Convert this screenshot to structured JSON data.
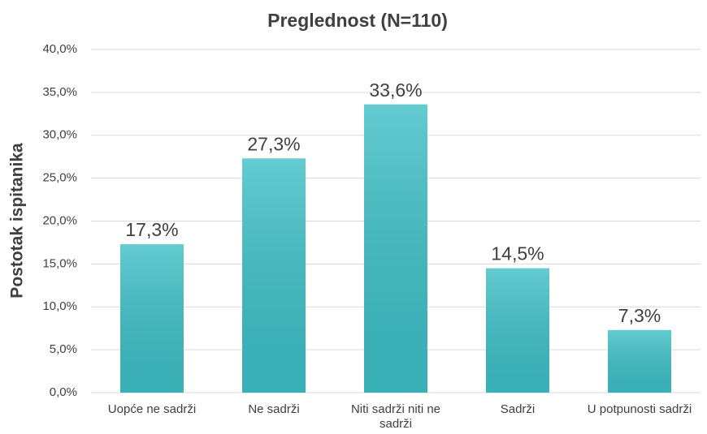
{
  "chart_data": {
    "type": "bar",
    "title": "Preglednost (N=110)",
    "y_label": "Postotak ispitanika",
    "categories": [
      "Uopće ne sadrži",
      "Ne sadrži",
      "Niti sadrži niti ne sadrži",
      "Sadrži",
      "U potpunosti sadrži"
    ],
    "values": [
      17.3,
      27.3,
      33.6,
      14.5,
      7.3
    ],
    "value_labels": [
      "17,3%",
      "27,3%",
      "33,6%",
      "14,5%",
      "7,3%"
    ],
    "color": "#3dbfc6",
    "ylim": [
      0,
      40
    ],
    "yticks": [
      {
        "value": 0,
        "label": "0,0%"
      },
      {
        "value": 5,
        "label": "5,0%"
      },
      {
        "value": 10,
        "label": "10,0%"
      },
      {
        "value": 15,
        "label": "15,0%"
      },
      {
        "value": 20,
        "label": "20,0%"
      },
      {
        "value": 25,
        "label": "25,0%"
      },
      {
        "value": 30,
        "label": "30,0%"
      },
      {
        "value": 35,
        "label": "35,0%"
      },
      {
        "value": 40,
        "label": "40,0%"
      }
    ],
    "grid": true
  }
}
